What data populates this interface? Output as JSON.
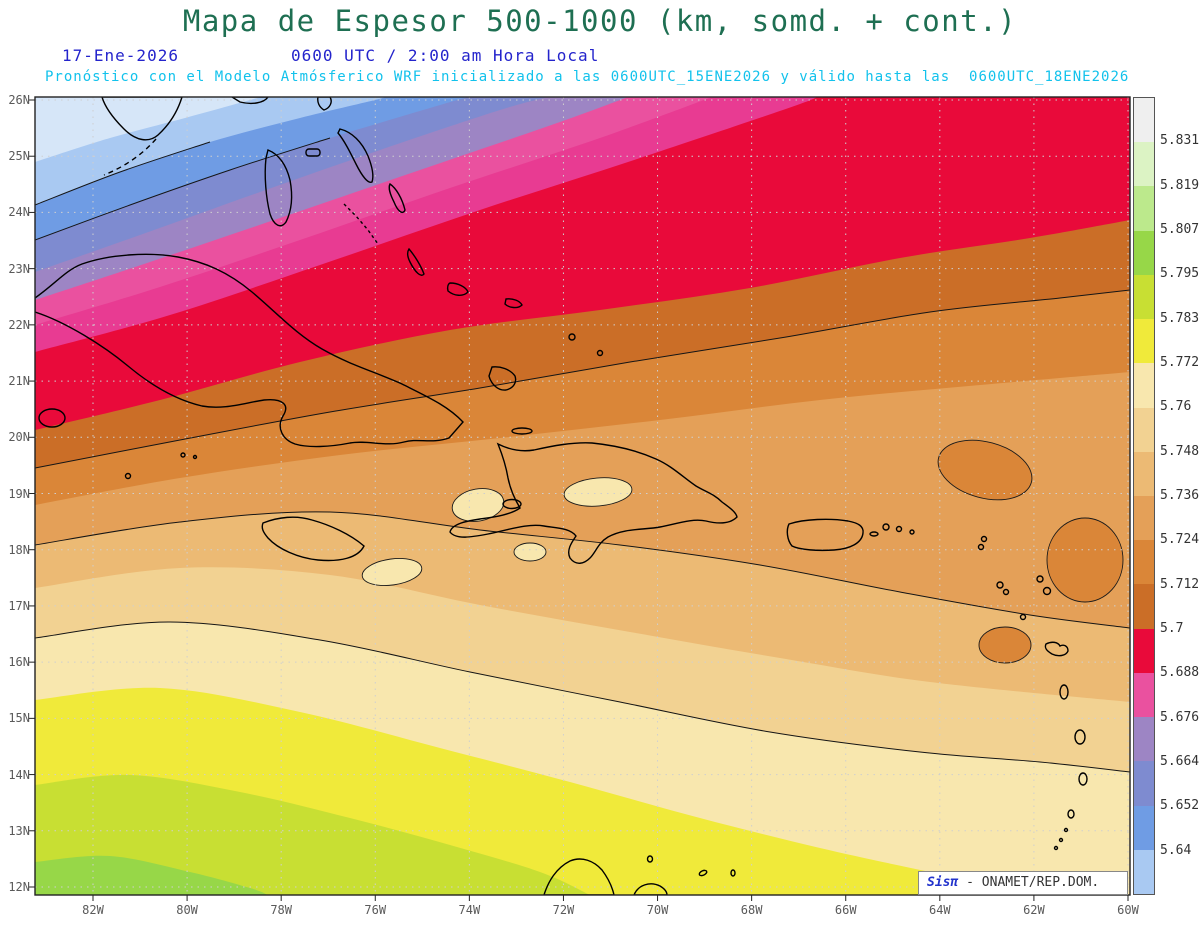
{
  "header": {
    "title": "Mapa de Espesor 500-1000 (km, somd. + cont.)",
    "date": "17-Ene-2026",
    "time": "0600 UTC / 2:00 am Hora Local",
    "forecast": "Pronóstico con el Modelo Atmósferico WRF inicializado a las 0600UTC_15ENE2026 y válido hasta las  0600UTC_18ENE2026"
  },
  "axes": {
    "lat_labels": [
      "26N",
      "25N",
      "24N",
      "23N",
      "22N",
      "21N",
      "20N",
      "19N",
      "18N",
      "17N",
      "16N",
      "15N",
      "14N",
      "13N",
      "12N"
    ],
    "lon_labels": [
      "82W",
      "80W",
      "78W",
      "76W",
      "74W",
      "72W",
      "70W",
      "68W",
      "66W",
      "64W",
      "62W",
      "60W"
    ]
  },
  "colorbar": {
    "values": [
      "5.831",
      "5.819",
      "5.807",
      "5.795",
      "5.783",
      "5.772",
      "5.76",
      "5.748",
      "5.736",
      "5.724",
      "5.712",
      "5.7",
      "5.688",
      "5.676",
      "5.664",
      "5.652",
      "5.64"
    ],
    "colors": [
      "#efefef",
      "#dcf3c4",
      "#bce98c",
      "#97d748",
      "#c8df33",
      "#f0ea3a",
      "#f8e7ae",
      "#f2d292",
      "#ecba74",
      "#e4a058",
      "#da8638",
      "#cb6e27",
      "#e90a3a",
      "#ea519f",
      "#9d85c4",
      "#7e8bd0",
      "#6f9ce4",
      "#a9c9f2"
    ]
  },
  "map_extra_colors": {
    "pale_blue": "#d6e6f8",
    "magenta": "#e83b92"
  },
  "watermark": {
    "brand": "Sisπ",
    "text": " - ONAMET/REP.DOM."
  },
  "map_data": {
    "type": "filled-contour weather map",
    "field": "Espesor (thickness) 500-1000 hPa",
    "units": "km",
    "model": "WRF",
    "region": {
      "lat_min": "12N",
      "lat_max": "26N",
      "lon_west": "82W",
      "lon_east": "60W"
    },
    "levels": [
      5.64,
      5.652,
      5.664,
      5.676,
      5.688,
      5.7,
      5.712,
      5.724,
      5.736,
      5.748,
      5.76,
      5.772,
      5.783,
      5.795,
      5.807,
      5.819,
      5.831
    ]
  }
}
